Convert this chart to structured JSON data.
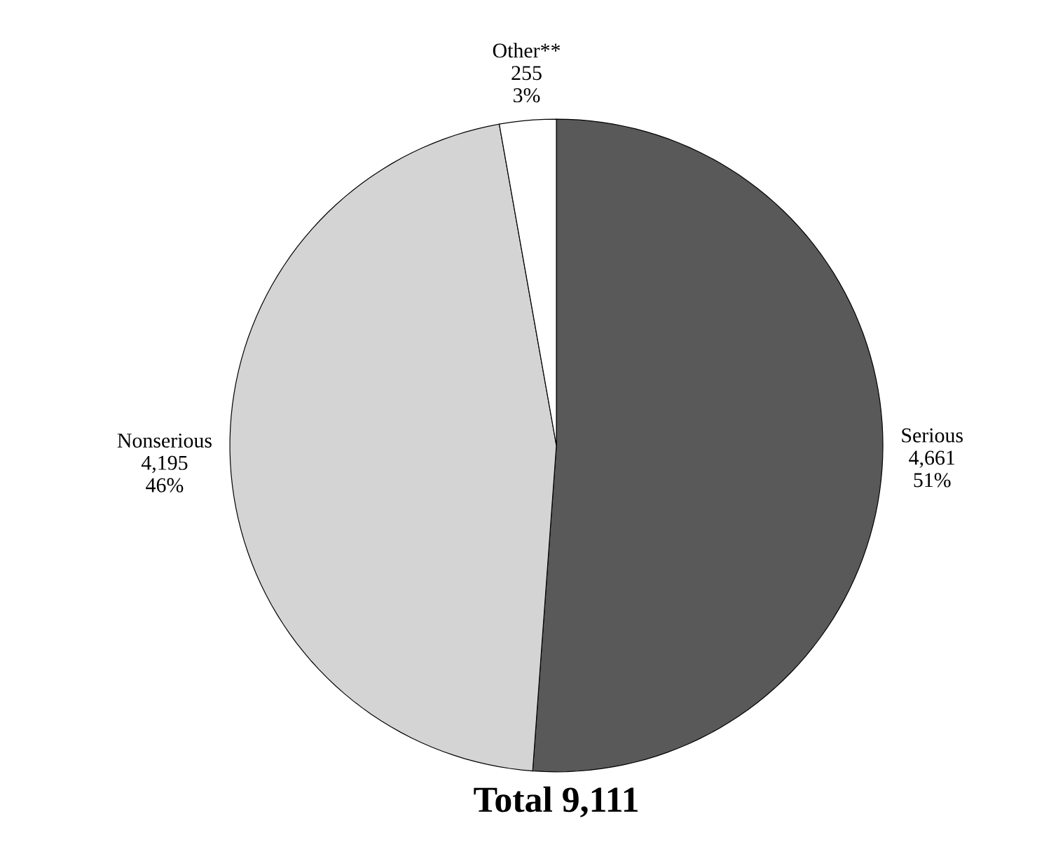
{
  "chart_data": {
    "type": "pie",
    "title": "Total 9,111",
    "categories": [
      "Serious",
      "Nonserious",
      "Other**"
    ],
    "values": [
      4661,
      4195,
      255
    ],
    "value_labels": [
      "4,661",
      "4,195",
      "255"
    ],
    "annotations": [
      "51%",
      "46%",
      "3%"
    ],
    "colors": [
      "#595959",
      "#d4d4d4",
      "#ffffff"
    ]
  }
}
